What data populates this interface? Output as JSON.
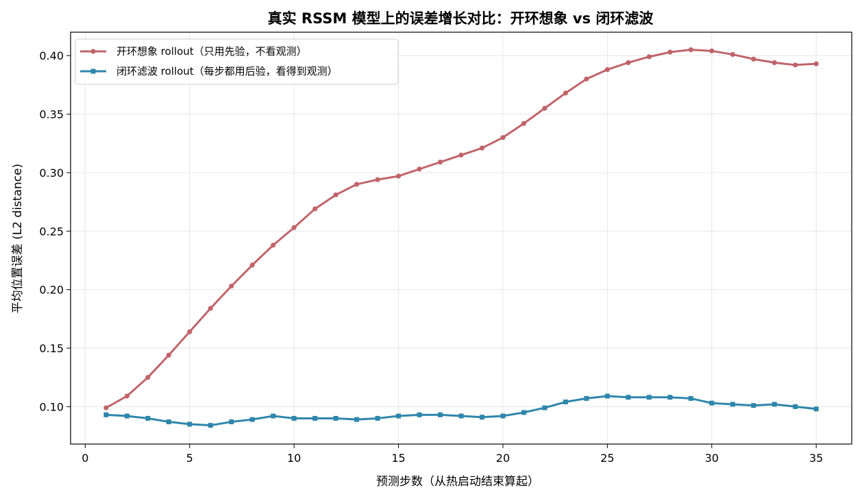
{
  "chart_data": {
    "type": "line",
    "title": "真实 RSSM 模型上的误差增长对比：开环想象 vs 闭环滤波",
    "xlabel": "预测步数（从热启动结束算起）",
    "ylabel": "平均位置误差 (L2 distance)",
    "xlim": [
      -0.7,
      36.7
    ],
    "ylim": [
      0.068,
      0.42
    ],
    "xticks": [
      0,
      5,
      10,
      15,
      20,
      25,
      30,
      35
    ],
    "yticks": [
      0.1,
      0.15,
      0.2,
      0.25,
      0.3,
      0.35,
      0.4
    ],
    "xtick_labels": [
      "0",
      "5",
      "10",
      "15",
      "20",
      "25",
      "30",
      "35"
    ],
    "ytick_labels": [
      "0.10",
      "0.15",
      "0.20",
      "0.25",
      "0.30",
      "0.35",
      "0.40"
    ],
    "grid": true,
    "legend_position": "top-left",
    "x": [
      1,
      2,
      3,
      4,
      5,
      6,
      7,
      8,
      9,
      10,
      11,
      12,
      13,
      14,
      15,
      16,
      17,
      18,
      19,
      20,
      21,
      22,
      23,
      24,
      25,
      26,
      27,
      28,
      29,
      30,
      31,
      32,
      33,
      34,
      35
    ],
    "series": [
      {
        "name": "开环想象 rollout（只用先验，不看观测）",
        "color": "#c0646a",
        "marker": "circle",
        "values": [
          0.099,
          0.109,
          0.125,
          0.144,
          0.164,
          0.184,
          0.203,
          0.221,
          0.238,
          0.253,
          0.269,
          0.281,
          0.29,
          0.294,
          0.297,
          0.303,
          0.309,
          0.315,
          0.321,
          0.33,
          0.342,
          0.355,
          0.368,
          0.38,
          0.388,
          0.394,
          0.399,
          0.403,
          0.405,
          0.404,
          0.401,
          0.397,
          0.394,
          0.392,
          0.393
        ]
      },
      {
        "name": "闭环滤波 rollout（每步都用后验，看得到观测）",
        "color": "#2e86ab",
        "marker": "square",
        "values": [
          0.093,
          0.092,
          0.09,
          0.087,
          0.085,
          0.084,
          0.087,
          0.089,
          0.092,
          0.09,
          0.09,
          0.09,
          0.089,
          0.09,
          0.092,
          0.093,
          0.093,
          0.092,
          0.091,
          0.092,
          0.095,
          0.099,
          0.104,
          0.107,
          0.109,
          0.108,
          0.108,
          0.108,
          0.107,
          0.103,
          0.102,
          0.101,
          0.102,
          0.1,
          0.098
        ]
      }
    ]
  }
}
